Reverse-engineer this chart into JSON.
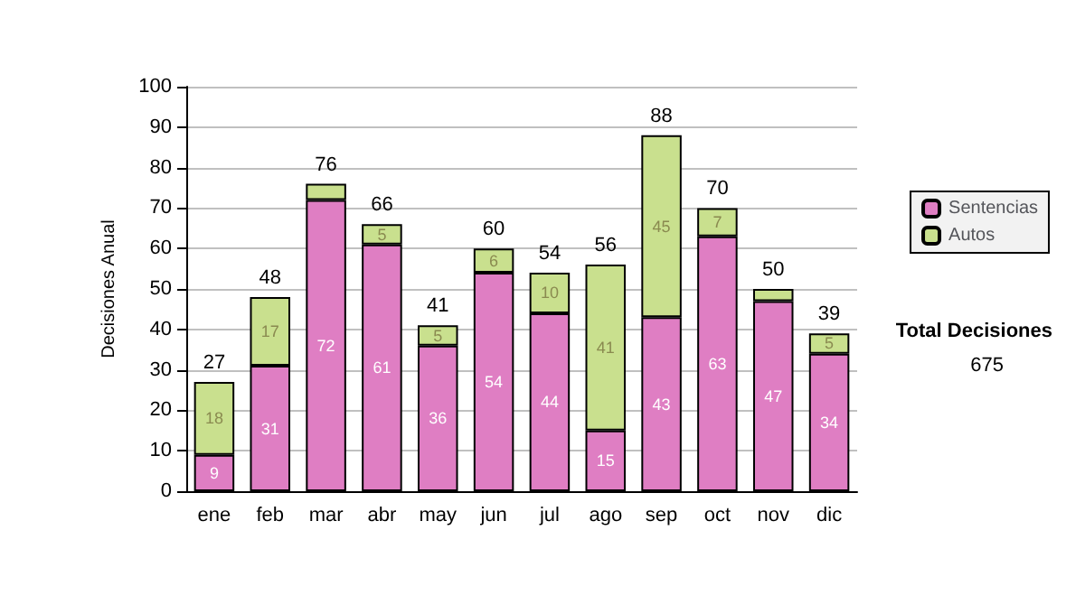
{
  "chart_data": {
    "type": "bar",
    "stacked": true,
    "ylabel": "Decisiones Anual",
    "categories": [
      "ene",
      "feb",
      "mar",
      "abr",
      "may",
      "jun",
      "jul",
      "ago",
      "sep",
      "oct",
      "nov",
      "dic"
    ],
    "series": [
      {
        "name": "Sentencias",
        "color": "#df7ec3",
        "values": [
          9,
          31,
          72,
          61,
          36,
          54,
          44,
          15,
          43,
          63,
          47,
          34
        ],
        "value_labels": [
          "9",
          "31",
          "72",
          "61",
          "36",
          "54",
          "44",
          "15",
          "43",
          "63",
          "47",
          "34"
        ]
      },
      {
        "name": "Autos",
        "color": "#c9e08e",
        "values": [
          18,
          17,
          4,
          5,
          5,
          6,
          10,
          41,
          45,
          7,
          3,
          5
        ],
        "value_labels": [
          "18",
          "17",
          null,
          "5",
          "5",
          "6",
          "10",
          "41",
          "45",
          "7",
          null,
          "5"
        ]
      }
    ],
    "totals": [
      "27",
      "48",
      "76",
      "66",
      "41",
      "60",
      "54",
      "56",
      "88",
      "70",
      "50",
      "39"
    ],
    "ylim": [
      0,
      100
    ],
    "yticks": [
      0,
      10,
      20,
      30,
      40,
      50,
      60,
      70,
      80,
      90,
      100
    ],
    "grid": "y",
    "legend": "right",
    "annotations": [
      "Total Decisiones",
      "675"
    ]
  }
}
